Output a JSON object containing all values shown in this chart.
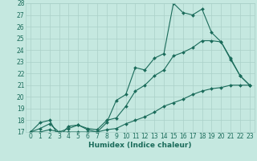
{
  "xlabel": "Humidex (Indice chaleur)",
  "xlim": [
    -0.5,
    23.5
  ],
  "ylim": [
    17,
    28
  ],
  "xticks": [
    0,
    1,
    2,
    3,
    4,
    5,
    6,
    7,
    8,
    9,
    10,
    11,
    12,
    13,
    14,
    15,
    16,
    17,
    18,
    19,
    20,
    21,
    22,
    23
  ],
  "yticks": [
    17,
    18,
    19,
    20,
    21,
    22,
    23,
    24,
    25,
    26,
    27,
    28
  ],
  "bg_color": "#c5e8e0",
  "grid_color": "#aad0c8",
  "line_color": "#1a6b5a",
  "line1_x": [
    0,
    1,
    2,
    3,
    4,
    5,
    6,
    7,
    8,
    9,
    10,
    11,
    12,
    13,
    14,
    15,
    16,
    17,
    18,
    19,
    20,
    21,
    22,
    23
  ],
  "line1_y": [
    17.0,
    17.8,
    18.0,
    16.6,
    17.5,
    17.6,
    17.2,
    17.0,
    17.8,
    19.7,
    20.2,
    22.5,
    22.3,
    23.3,
    23.7,
    28.0,
    27.2,
    27.0,
    27.5,
    25.5,
    24.7,
    23.2,
    21.8,
    21.0
  ],
  "line2_x": [
    0,
    1,
    2,
    3,
    4,
    5,
    6,
    7,
    8,
    9,
    10,
    11,
    12,
    13,
    14,
    15,
    16,
    17,
    18,
    19,
    20,
    21,
    22,
    23
  ],
  "line2_y": [
    17.0,
    17.3,
    17.7,
    17.0,
    17.3,
    17.6,
    17.3,
    17.2,
    18.0,
    18.2,
    19.2,
    20.5,
    21.0,
    21.8,
    22.3,
    23.5,
    23.8,
    24.2,
    24.8,
    24.8,
    24.7,
    23.3,
    21.8,
    21.0
  ],
  "line3_x": [
    0,
    1,
    2,
    3,
    4,
    5,
    6,
    7,
    8,
    9,
    10,
    11,
    12,
    13,
    14,
    15,
    16,
    17,
    18,
    19,
    20,
    21,
    22,
    23
  ],
  "line3_y": [
    17.0,
    17.0,
    17.2,
    17.0,
    17.0,
    17.0,
    17.0,
    17.0,
    17.2,
    17.3,
    17.7,
    18.0,
    18.3,
    18.7,
    19.2,
    19.5,
    19.8,
    20.2,
    20.5,
    20.7,
    20.8,
    21.0,
    21.0,
    21.0
  ],
  "marker": "D",
  "markersize": 2.0,
  "linewidth": 0.8,
  "xlabel_fontsize": 6.5,
  "tick_fontsize": 5.5
}
